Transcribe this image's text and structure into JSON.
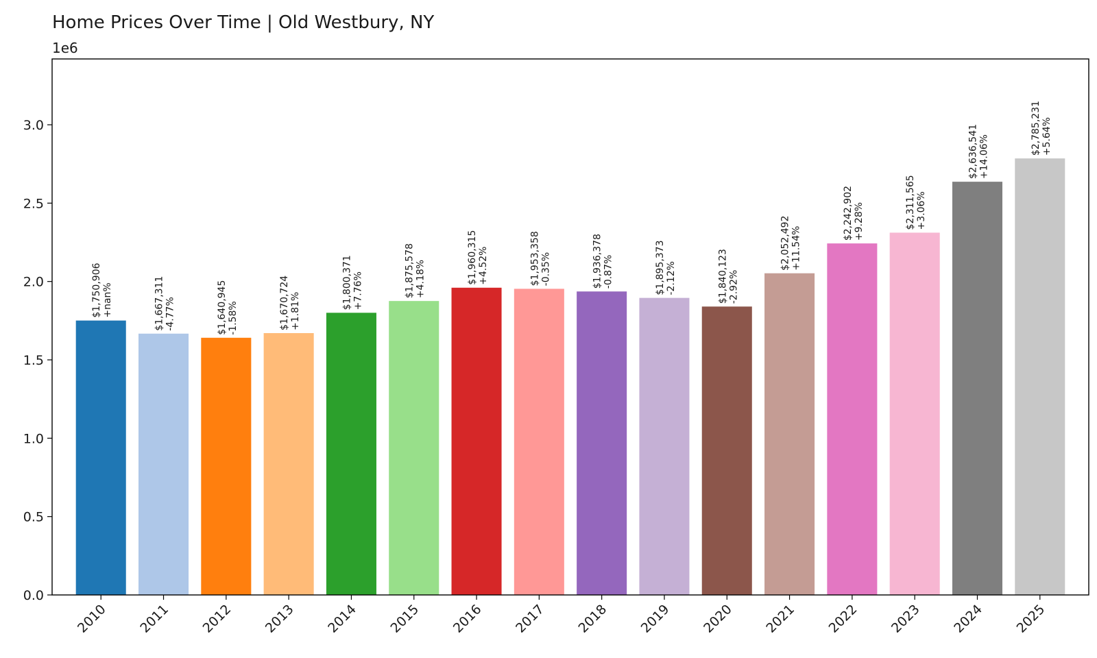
{
  "chart_data": {
    "type": "bar",
    "title": "Home Prices Over Time | Old Westbury, NY",
    "offset_label": "1e6",
    "xlabel": "",
    "ylabel": "",
    "ylim": [
      0,
      3.42
    ],
    "yticks": [
      "0.0",
      "0.5",
      "1.0",
      "1.5",
      "2.0",
      "2.5",
      "3.0"
    ],
    "grid": false,
    "categories": [
      "2010",
      "2011",
      "2012",
      "2013",
      "2014",
      "2015",
      "2016",
      "2017",
      "2018",
      "2019",
      "2020",
      "2021",
      "2022",
      "2023",
      "2024",
      "2025"
    ],
    "values": [
      1750906,
      1667311,
      1640945,
      1670724,
      1800371,
      1875578,
      1960315,
      1953358,
      1936378,
      1895373,
      1840123,
      2052492,
      2242902,
      2311565,
      2636541,
      2785231
    ],
    "price_labels": [
      "$1,750,906",
      "$1,667,311",
      "$1,640,945",
      "$1,670,724",
      "$1,800,371",
      "$1,875,578",
      "$1,960,315",
      "$1,953,358",
      "$1,936,378",
      "$1,895,373",
      "$1,840,123",
      "$2,052,492",
      "$2,242,902",
      "$2,311,565",
      "$2,636,541",
      "$2,785,231"
    ],
    "change_labels": [
      "+nan%",
      "-4.77%",
      "-1.58%",
      "+1.81%",
      "+7.76%",
      "+4.18%",
      "+4.52%",
      "-0.35%",
      "-0.87%",
      "-2.12%",
      "-2.92%",
      "+11.54%",
      "+9.28%",
      "+3.06%",
      "+14.06%",
      "+5.64%"
    ],
    "colors": [
      "#1f77b4",
      "#aec7e8",
      "#ff7f0e",
      "#ffbb78",
      "#2ca02c",
      "#98df8a",
      "#d62728",
      "#ff9896",
      "#9467bd",
      "#c5b0d5",
      "#8c564b",
      "#c49c94",
      "#e377c2",
      "#f7b6d2",
      "#7f7f7f",
      "#c7c7c7"
    ]
  }
}
